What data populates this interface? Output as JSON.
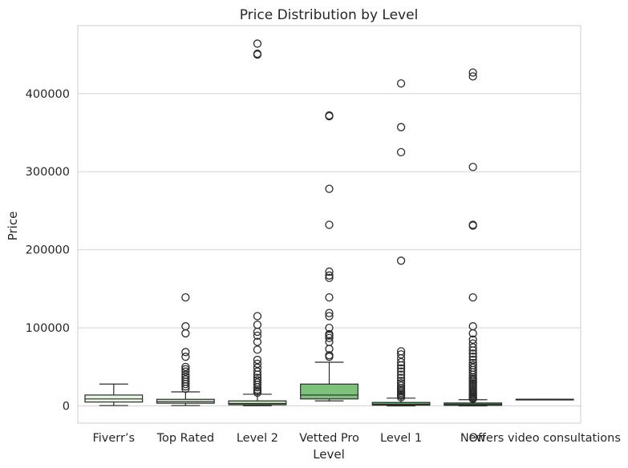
{
  "chart_data": {
    "type": "box",
    "title": "Price Distribution by Level",
    "xlabel": "Level",
    "ylabel": "Price",
    "ylim": [
      -22000,
      487000
    ],
    "yticks": [
      0,
      100000,
      200000,
      300000,
      400000
    ],
    "grid": "horizontal",
    "categories": [
      "Fiverr’s",
      "Top Rated",
      "Level 2",
      "Vetted Pro",
      "Level 1",
      "New",
      "Offers video consultations"
    ],
    "colors": [
      "#e6f4e3",
      "#d2ebcd",
      "#b6deaf",
      "#7cc27b",
      "#57aa61",
      "#3a8a4c",
      "#2a6b3b"
    ],
    "boxes": [
      {
        "whisker_low": 500,
        "q1": 5000,
        "median": 9000,
        "q3": 14000,
        "whisker_high": 28000,
        "outliers": []
      },
      {
        "whisker_low": 500,
        "q1": 3500,
        "median": 5500,
        "q3": 8500,
        "whisker_high": 18000,
        "outliers": [
          22000,
          25000,
          28000,
          31000,
          34000,
          37000,
          40000,
          44000,
          47000,
          50000,
          63000,
          69000,
          93000,
          102000,
          139000
        ]
      },
      {
        "whisker_low": 300,
        "q1": 1500,
        "median": 3000,
        "q3": 6500,
        "whisker_high": 15000,
        "outliers": [
          17000,
          19000,
          21000,
          24000,
          27000,
          30000,
          33000,
          36000,
          40000,
          44000,
          49000,
          54000,
          59000,
          72000,
          82000,
          90000,
          95000,
          104000,
          115000,
          450000,
          451000,
          464000
        ]
      },
      {
        "whisker_low": 6500,
        "q1": 9000,
        "median": 14000,
        "q3": 28000,
        "whisker_high": 56000,
        "outliers": [
          63000,
          65000,
          73000,
          82000,
          87000,
          90000,
          92000,
          100000,
          115000,
          119000,
          139000,
          164000,
          167000,
          172000,
          232000,
          278000,
          371000,
          372000
        ]
      },
      {
        "whisker_low": 100,
        "q1": 1000,
        "median": 2000,
        "q3": 4500,
        "whisker_high": 10000,
        "outliers": [
          11000,
          13000,
          15000,
          17000,
          19000,
          21000,
          23000,
          26000,
          29000,
          32000,
          36000,
          40000,
          44000,
          48000,
          52000,
          56000,
          61000,
          66000,
          70000,
          186000,
          325000,
          357000,
          413000
        ]
      },
      {
        "whisker_low": 100,
        "q1": 800,
        "median": 1800,
        "q3": 3800,
        "whisker_high": 8000,
        "outliers": [
          9000,
          10000,
          11000,
          12500,
          14000,
          15500,
          17000,
          19000,
          21000,
          23000,
          25000,
          27000,
          29000,
          31000,
          33000,
          35000,
          37000,
          40000,
          43000,
          46000,
          49000,
          52000,
          55000,
          59000,
          63000,
          67000,
          71000,
          75000,
          80000,
          85000,
          93000,
          102000,
          139000,
          231000,
          232000,
          306000,
          422000,
          427000
        ]
      },
      {
        "whisker_low": 8500,
        "q1": 8500,
        "median": 8500,
        "q3": 8500,
        "whisker_high": 8500,
        "outliers": []
      }
    ]
  }
}
